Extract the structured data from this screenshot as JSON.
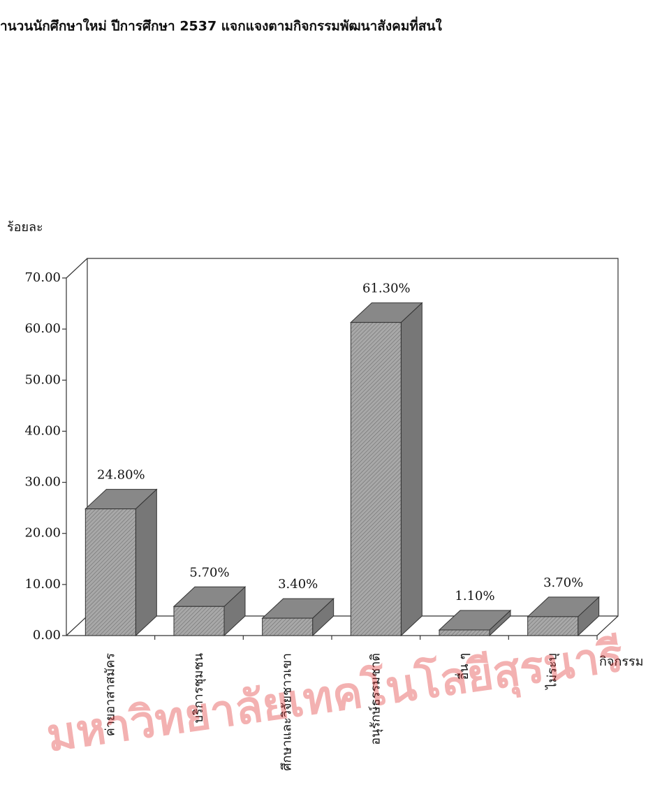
{
  "chart_data": {
    "type": "bar3d",
    "title": "านวนนักศึกษาใหม่ ปีการศึกษา 2537 แจกแจงตามกิจกรรมพัฒนาสังคมที่สนใ",
    "y_label": "ร้อยละ",
    "x_label": "กิจกรรม",
    "watermark": "มหาวิทยาลัยเทคโนโลยีสุรนารี",
    "categories": [
      "ค่ายอาสาสมัคร",
      "บริการชุมชน",
      "ศึกษาและวิจัยชาวเขา",
      "อนุรักษ์ธรรมชาติ",
      "อื่น ๆ",
      "ไม่ระบุ"
    ],
    "values": [
      24.8,
      5.7,
      3.4,
      61.3,
      1.1,
      3.7
    ],
    "value_labels": [
      "24.80%",
      "5.70%",
      "3.40%",
      "61.30%",
      "1.10%",
      "3.70%"
    ],
    "color": "#9a9a9a",
    "ylim": [
      0,
      70
    ],
    "yticks": [
      {
        "value": 0,
        "label": "0.00"
      },
      {
        "value": 10,
        "label": "10.00"
      },
      {
        "value": 20,
        "label": "20.00"
      },
      {
        "value": 30,
        "label": "30.00"
      },
      {
        "value": 40,
        "label": "40.00"
      },
      {
        "value": 50,
        "label": "50.00"
      },
      {
        "value": 60,
        "label": "60.00"
      },
      {
        "value": 70,
        "label": "70.00"
      }
    ]
  }
}
